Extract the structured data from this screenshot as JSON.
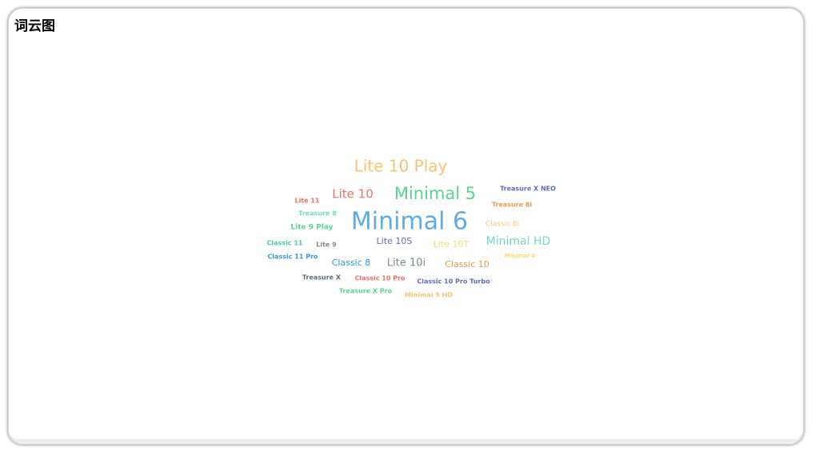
{
  "title": "词云图",
  "chart_data": {
    "type": "wordcloud",
    "words": [
      {
        "text": "Minimal 6",
        "weight": 100,
        "color": "#5dade2"
      },
      {
        "text": "Minimal 5",
        "weight": 72,
        "color": "#58d68d"
      },
      {
        "text": "Lite 10 Play",
        "weight": 68,
        "color": "#f8c471"
      },
      {
        "text": "Lite 10",
        "weight": 52,
        "color": "#ec7063"
      },
      {
        "text": "Minimal HD",
        "weight": 48,
        "color": "#76d7c4"
      },
      {
        "text": "Lite 10i",
        "weight": 44,
        "color": "#7f8c8d"
      },
      {
        "text": "Classic 10",
        "weight": 38,
        "color": "#eb984e"
      },
      {
        "text": "Lite 10S",
        "weight": 36,
        "color": "#5d6dbe"
      },
      {
        "text": "Lite 10T",
        "weight": 35,
        "color": "#f7dc6f"
      },
      {
        "text": "Classic 8",
        "weight": 36,
        "color": "#3498db"
      },
      {
        "text": "Classic 8i",
        "weight": 28,
        "color": "#f8c471"
      },
      {
        "text": "Lite 9 Play",
        "weight": 28,
        "color": "#58d68d"
      },
      {
        "text": "Treasure 8",
        "weight": 20,
        "color": "#76d7c4"
      },
      {
        "text": "Lite 11",
        "weight": 20,
        "color": "#ec7063"
      },
      {
        "text": "Treasure X NEO",
        "weight": 20,
        "color": "#5d6dbe"
      },
      {
        "text": "Treasure 8i",
        "weight": 20,
        "color": "#eb984e"
      },
      {
        "text": "Classic 11",
        "weight": 20,
        "color": "#48c9b0"
      },
      {
        "text": "Lite 9",
        "weight": 20,
        "color": "#7f8c8d"
      },
      {
        "text": "Classic 11 Pro",
        "weight": 20,
        "color": "#3498db"
      },
      {
        "text": "Minimal 4",
        "weight": 18,
        "color": "#f7dc6f"
      },
      {
        "text": "Treasure X",
        "weight": 20,
        "color": "#5d6d7e"
      },
      {
        "text": "Classic 10 Pro",
        "weight": 20,
        "color": "#ec7063"
      },
      {
        "text": "Classic 10 Pro Turbo",
        "weight": 20,
        "color": "#5d6dbe"
      },
      {
        "text": "Treasure X Pro",
        "weight": 20,
        "color": "#58d68d"
      },
      {
        "text": "Minimal 5 HD",
        "weight": 20,
        "color": "#f8c471"
      }
    ]
  }
}
